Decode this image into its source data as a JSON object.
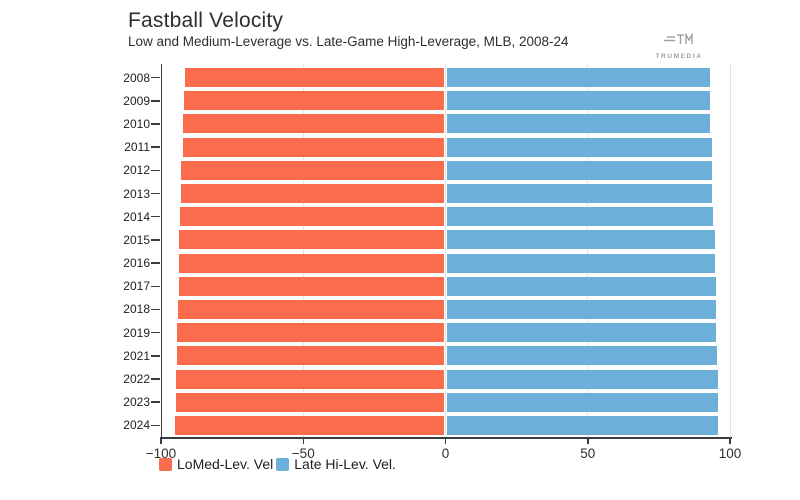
{
  "header": {
    "title": "Fastball Velocity",
    "subtitle": "Low and Medium-Leverage vs. Late-Game High-Leverage, MLB, 2008-24"
  },
  "logo": {
    "brand": "TRUMEDIA",
    "icon": "trumedia-monogram"
  },
  "colors": {
    "orange": "#FA6C4C",
    "blue": "#6CAFD9",
    "axis": "#3a3d40",
    "grid": "#e2e2e2",
    "text": "#1f1f1f",
    "logo_gray": "#9aa0a4"
  },
  "chart_data": {
    "type": "bar",
    "orientation": "horizontal-diverging",
    "title": "Fastball Velocity",
    "subtitle": "Low and Medium-Leverage vs. Late-Game High-Leverage, MLB, 2008-24",
    "categories": [
      "2008",
      "2009",
      "2010",
      "2011",
      "2012",
      "2013",
      "2014",
      "2015",
      "2016",
      "2017",
      "2018",
      "2019",
      "2021",
      "2022",
      "2023",
      "2024"
    ],
    "series": [
      {
        "name": "LoMed-Lev. Vel",
        "color": "#FA6C4C",
        "direction": "left",
        "values": [
          91.0,
          91.3,
          91.7,
          91.9,
          92.3,
          92.3,
          92.7,
          93.0,
          93.3,
          93.3,
          93.4,
          93.7,
          93.9,
          94.1,
          94.1,
          94.4
        ]
      },
      {
        "name": "Late Hi-Lev. Vel.",
        "color": "#6CAFD9",
        "direction": "right",
        "values": [
          92.4,
          92.4,
          92.6,
          93.0,
          93.2,
          93.2,
          93.6,
          94.1,
          94.1,
          94.4,
          94.4,
          94.7,
          95.0,
          95.2,
          95.2,
          95.4
        ]
      }
    ],
    "xlim": [
      -100,
      100
    ],
    "x_tick_values": [
      -100,
      -50,
      0,
      50,
      100
    ],
    "x_tick_labels": [
      "−100",
      "−50",
      "0",
      "50",
      "100"
    ],
    "grid": "vertical-gridlines-at-ticks",
    "legend_position": "bottom-left"
  }
}
